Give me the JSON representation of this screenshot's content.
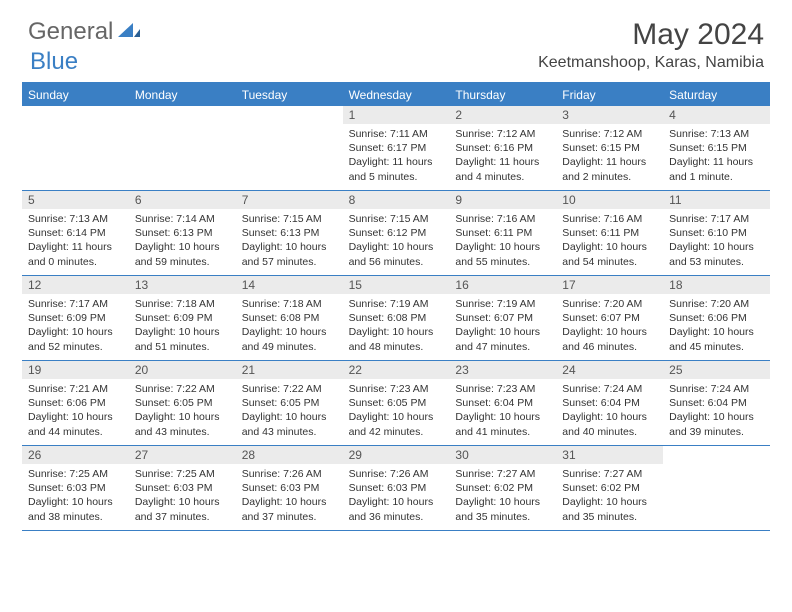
{
  "logo": {
    "text1": "General",
    "text2": "Blue"
  },
  "title": "May 2024",
  "location": "Keetmanshoop, Karas, Namibia",
  "colors": {
    "accent": "#3a7fc4",
    "daynum_bg": "#ebebeb",
    "text": "#333333",
    "logo_gray": "#666666"
  },
  "weekdays": [
    "Sunday",
    "Monday",
    "Tuesday",
    "Wednesday",
    "Thursday",
    "Friday",
    "Saturday"
  ],
  "weeks": [
    [
      {
        "empty": true
      },
      {
        "empty": true
      },
      {
        "empty": true
      },
      {
        "num": "1",
        "sunrise": "7:11 AM",
        "sunset": "6:17 PM",
        "daylight": "11 hours and 5 minutes."
      },
      {
        "num": "2",
        "sunrise": "7:12 AM",
        "sunset": "6:16 PM",
        "daylight": "11 hours and 4 minutes."
      },
      {
        "num": "3",
        "sunrise": "7:12 AM",
        "sunset": "6:15 PM",
        "daylight": "11 hours and 2 minutes."
      },
      {
        "num": "4",
        "sunrise": "7:13 AM",
        "sunset": "6:15 PM",
        "daylight": "11 hours and 1 minute."
      }
    ],
    [
      {
        "num": "5",
        "sunrise": "7:13 AM",
        "sunset": "6:14 PM",
        "daylight": "11 hours and 0 minutes."
      },
      {
        "num": "6",
        "sunrise": "7:14 AM",
        "sunset": "6:13 PM",
        "daylight": "10 hours and 59 minutes."
      },
      {
        "num": "7",
        "sunrise": "7:15 AM",
        "sunset": "6:13 PM",
        "daylight": "10 hours and 57 minutes."
      },
      {
        "num": "8",
        "sunrise": "7:15 AM",
        "sunset": "6:12 PM",
        "daylight": "10 hours and 56 minutes."
      },
      {
        "num": "9",
        "sunrise": "7:16 AM",
        "sunset": "6:11 PM",
        "daylight": "10 hours and 55 minutes."
      },
      {
        "num": "10",
        "sunrise": "7:16 AM",
        "sunset": "6:11 PM",
        "daylight": "10 hours and 54 minutes."
      },
      {
        "num": "11",
        "sunrise": "7:17 AM",
        "sunset": "6:10 PM",
        "daylight": "10 hours and 53 minutes."
      }
    ],
    [
      {
        "num": "12",
        "sunrise": "7:17 AM",
        "sunset": "6:09 PM",
        "daylight": "10 hours and 52 minutes."
      },
      {
        "num": "13",
        "sunrise": "7:18 AM",
        "sunset": "6:09 PM",
        "daylight": "10 hours and 51 minutes."
      },
      {
        "num": "14",
        "sunrise": "7:18 AM",
        "sunset": "6:08 PM",
        "daylight": "10 hours and 49 minutes."
      },
      {
        "num": "15",
        "sunrise": "7:19 AM",
        "sunset": "6:08 PM",
        "daylight": "10 hours and 48 minutes."
      },
      {
        "num": "16",
        "sunrise": "7:19 AM",
        "sunset": "6:07 PM",
        "daylight": "10 hours and 47 minutes."
      },
      {
        "num": "17",
        "sunrise": "7:20 AM",
        "sunset": "6:07 PM",
        "daylight": "10 hours and 46 minutes."
      },
      {
        "num": "18",
        "sunrise": "7:20 AM",
        "sunset": "6:06 PM",
        "daylight": "10 hours and 45 minutes."
      }
    ],
    [
      {
        "num": "19",
        "sunrise": "7:21 AM",
        "sunset": "6:06 PM",
        "daylight": "10 hours and 44 minutes."
      },
      {
        "num": "20",
        "sunrise": "7:22 AM",
        "sunset": "6:05 PM",
        "daylight": "10 hours and 43 minutes."
      },
      {
        "num": "21",
        "sunrise": "7:22 AM",
        "sunset": "6:05 PM",
        "daylight": "10 hours and 43 minutes."
      },
      {
        "num": "22",
        "sunrise": "7:23 AM",
        "sunset": "6:05 PM",
        "daylight": "10 hours and 42 minutes."
      },
      {
        "num": "23",
        "sunrise": "7:23 AM",
        "sunset": "6:04 PM",
        "daylight": "10 hours and 41 minutes."
      },
      {
        "num": "24",
        "sunrise": "7:24 AM",
        "sunset": "6:04 PM",
        "daylight": "10 hours and 40 minutes."
      },
      {
        "num": "25",
        "sunrise": "7:24 AM",
        "sunset": "6:04 PM",
        "daylight": "10 hours and 39 minutes."
      }
    ],
    [
      {
        "num": "26",
        "sunrise": "7:25 AM",
        "sunset": "6:03 PM",
        "daylight": "10 hours and 38 minutes."
      },
      {
        "num": "27",
        "sunrise": "7:25 AM",
        "sunset": "6:03 PM",
        "daylight": "10 hours and 37 minutes."
      },
      {
        "num": "28",
        "sunrise": "7:26 AM",
        "sunset": "6:03 PM",
        "daylight": "10 hours and 37 minutes."
      },
      {
        "num": "29",
        "sunrise": "7:26 AM",
        "sunset": "6:03 PM",
        "daylight": "10 hours and 36 minutes."
      },
      {
        "num": "30",
        "sunrise": "7:27 AM",
        "sunset": "6:02 PM",
        "daylight": "10 hours and 35 minutes."
      },
      {
        "num": "31",
        "sunrise": "7:27 AM",
        "sunset": "6:02 PM",
        "daylight": "10 hours and 35 minutes."
      },
      {
        "empty": true
      }
    ]
  ],
  "labels": {
    "sunrise": "Sunrise: ",
    "sunset": "Sunset: ",
    "daylight": "Daylight: "
  }
}
